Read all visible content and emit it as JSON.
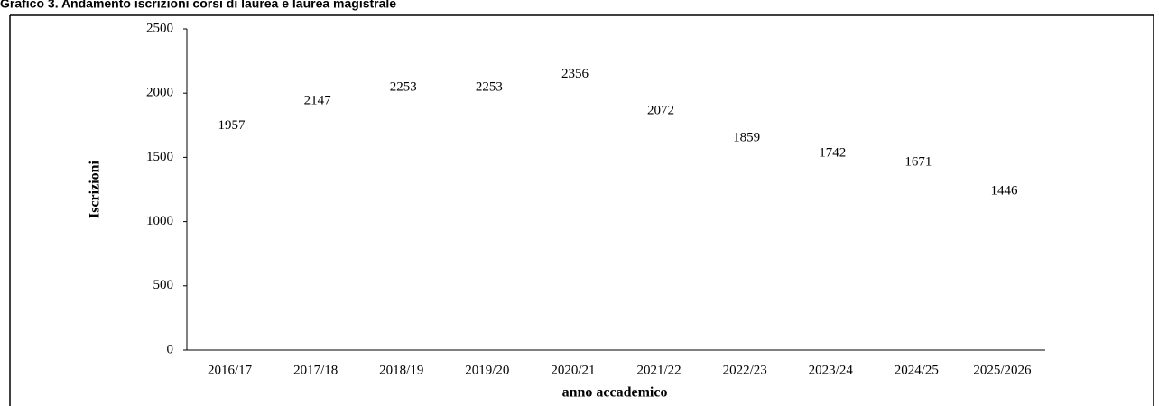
{
  "chart_data": {
    "type": "line",
    "title": "Grafico 3. Andamento iscrizioni corsi di laurea e laurea magistrale",
    "x_label": "anno accademico",
    "y_label": "Iscrizioni",
    "categories": [
      "2016/17",
      "2017/18",
      "2018/19",
      "2019/20",
      "2020/21",
      "2021/22",
      "2022/23",
      "2023/24",
      "2024/25",
      "2025/2026"
    ],
    "values": [
      1957,
      2147,
      2253,
      2253,
      2356,
      2072,
      1859,
      1742,
      1671,
      1446
    ],
    "color": "#ffffff",
    "ylim": [
      0,
      2500
    ],
    "yticks": [
      0,
      500,
      1000,
      1500,
      2000,
      2500
    ],
    "grid": false
  }
}
